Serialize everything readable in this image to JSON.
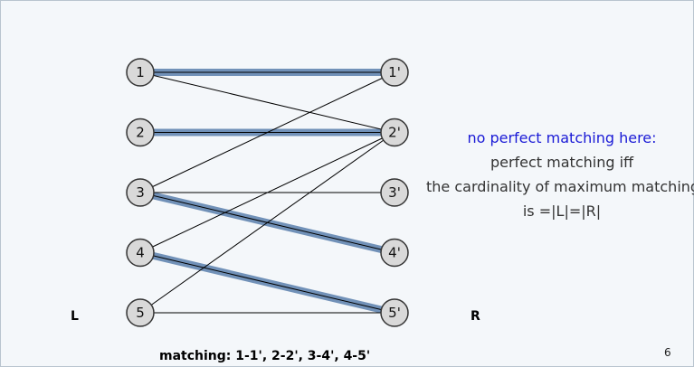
{
  "graph": {
    "left_set_label": "L",
    "right_set_label": "R",
    "left_nodes": [
      {
        "id": "1",
        "label": "1"
      },
      {
        "id": "2",
        "label": "2"
      },
      {
        "id": "3",
        "label": "3"
      },
      {
        "id": "4",
        "label": "4"
      },
      {
        "id": "5",
        "label": "5"
      }
    ],
    "right_nodes": [
      {
        "id": "1p",
        "label": "1'"
      },
      {
        "id": "2p",
        "label": "2'"
      },
      {
        "id": "3p",
        "label": "3'"
      },
      {
        "id": "4p",
        "label": "4'"
      },
      {
        "id": "5p",
        "label": "5'"
      }
    ],
    "edges": [
      {
        "from": "1",
        "to": "1p",
        "matched": true
      },
      {
        "from": "1",
        "to": "2p",
        "matched": false
      },
      {
        "from": "2",
        "to": "2p",
        "matched": true
      },
      {
        "from": "3",
        "to": "1p",
        "matched": false
      },
      {
        "from": "3",
        "to": "3p",
        "matched": false
      },
      {
        "from": "3",
        "to": "4p",
        "matched": true
      },
      {
        "from": "4",
        "to": "2p",
        "matched": false
      },
      {
        "from": "4",
        "to": "5p",
        "matched": true
      },
      {
        "from": "5",
        "to": "2p",
        "matched": false
      },
      {
        "from": "5",
        "to": "5p",
        "matched": false
      }
    ]
  },
  "notes": {
    "line1": "no perfect matching here:",
    "line2": "perfect matching iff",
    "line3": "the cardinality of maximum matching",
    "line4": "is =|L|=|R|"
  },
  "caption": "matching:  1-1', 2-2', 3-4', 4-5'",
  "page_number": "6",
  "colors": {
    "highlight": "#7191b8",
    "edge": "#000000",
    "node_fill": "#d9d9d9",
    "node_stroke": "#333333",
    "accent_text": "#1a1ad6"
  }
}
